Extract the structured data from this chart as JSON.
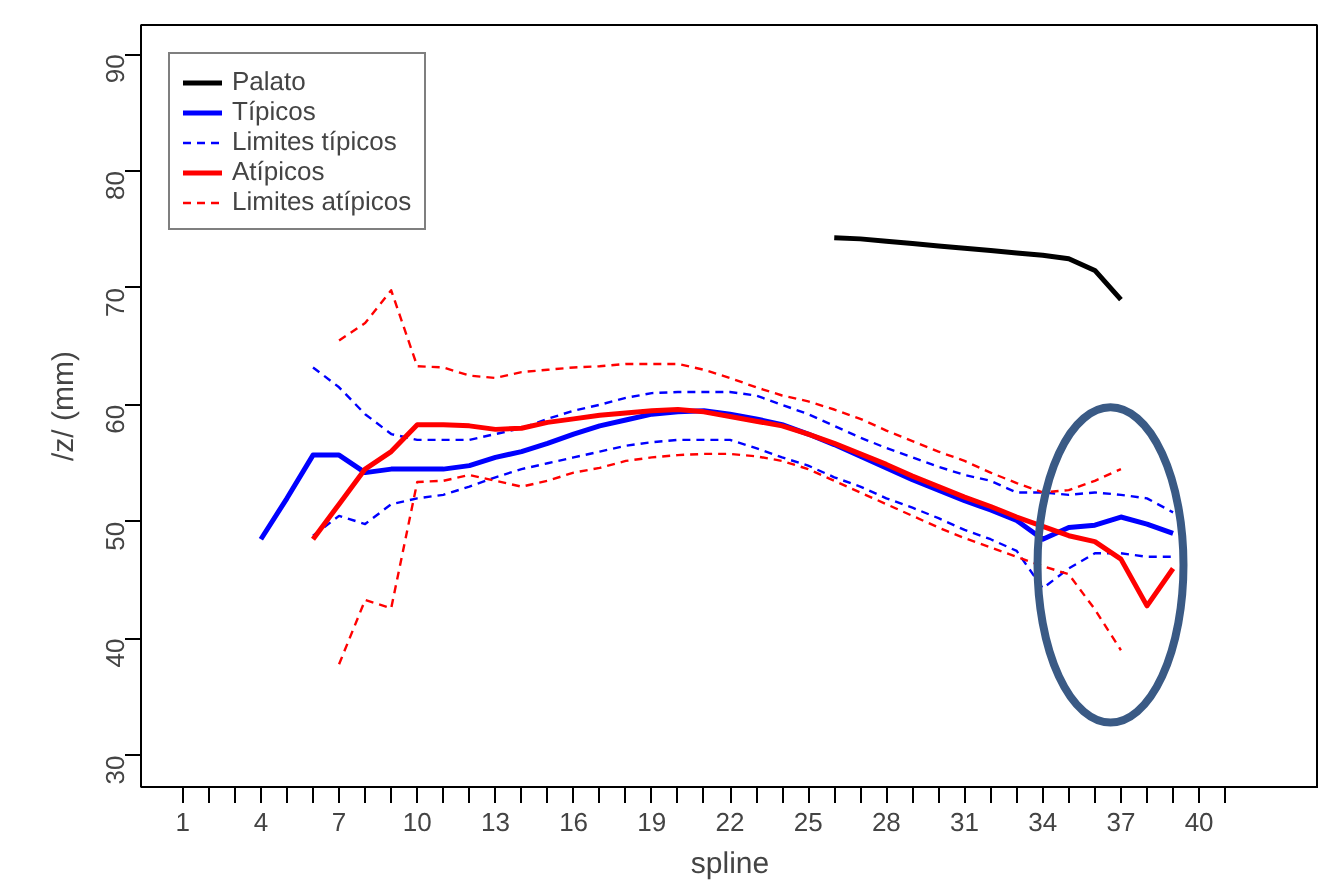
{
  "chart_data": {
    "type": "line",
    "xlabel": "spline",
    "ylabel": "/z/ (mm)",
    "xlim": [
      -0.6,
      44.6
    ],
    "ylim": [
      27.3,
      92.5
    ],
    "xticks": [
      1,
      {
        "value": 2,
        "label": null
      },
      {
        "value": 3,
        "label": null
      },
      4,
      {
        "value": 5,
        "label": null
      },
      {
        "value": 6,
        "label": null
      },
      7,
      {
        "value": 8,
        "label": null
      },
      {
        "value": 9,
        "label": null
      },
      10,
      {
        "value": 11,
        "label": null
      },
      {
        "value": 12,
        "label": null
      },
      13,
      {
        "value": 14,
        "label": null
      },
      {
        "value": 15,
        "label": null
      },
      16,
      {
        "value": 17,
        "label": null
      },
      {
        "value": 18,
        "label": null
      },
      19,
      {
        "value": 20,
        "label": null
      },
      {
        "value": 21,
        "label": null
      },
      22,
      {
        "value": 23,
        "label": null
      },
      {
        "value": 24,
        "label": null
      },
      25,
      {
        "value": 26,
        "label": null
      },
      {
        "value": 27,
        "label": null
      },
      28,
      {
        "value": 29,
        "label": null
      },
      {
        "value": 30,
        "label": null
      },
      31,
      {
        "value": 32,
        "label": null
      },
      {
        "value": 33,
        "label": null
      },
      34,
      {
        "value": 35,
        "label": null
      },
      {
        "value": 36,
        "label": null
      },
      37,
      {
        "value": 38,
        "label": null
      },
      {
        "value": 39,
        "label": null
      },
      40,
      {
        "value": 41,
        "label": null
      }
    ],
    "yticks": [
      30,
      40,
      50,
      60,
      70,
      80,
      90
    ],
    "grid": false,
    "legend": "top left",
    "series": [
      {
        "name": "Palato",
        "color": "#000000",
        "line_style": "solid",
        "x": [
          26,
          27,
          28,
          29,
          30,
          31,
          32,
          33,
          34,
          35,
          36,
          37
        ],
        "values": [
          74.3,
          74.2,
          74.0,
          73.8,
          73.6,
          73.4,
          73.2,
          73.0,
          72.8,
          72.5,
          71.5,
          69.0
        ]
      },
      {
        "name": "Típicos",
        "color": "#0000ff",
        "line_style": "solid",
        "x": [
          4,
          5,
          6,
          7,
          8,
          9,
          10,
          11,
          12,
          13,
          14,
          15,
          16,
          17,
          18,
          19,
          20,
          21,
          22,
          23,
          24,
          25,
          26,
          27,
          28,
          29,
          30,
          31,
          32,
          33,
          34,
          35,
          36,
          37,
          38,
          39
        ],
        "values": [
          48.5,
          52.0,
          55.7,
          55.7,
          54.2,
          54.5,
          54.5,
          54.5,
          54.8,
          55.5,
          56.0,
          56.7,
          57.5,
          58.2,
          58.7,
          59.2,
          59.4,
          59.5,
          59.2,
          58.8,
          58.3,
          57.5,
          56.6,
          55.6,
          54.6,
          53.6,
          52.7,
          51.8,
          51.0,
          50.1,
          48.5,
          49.5,
          49.7,
          50.4,
          49.8,
          49.0
        ]
      },
      {
        "name": "Limites típicos",
        "color": "#0000ff",
        "line_style": "dashed",
        "x": [
          6,
          7,
          8,
          9,
          10,
          11,
          12,
          13,
          14,
          15,
          16,
          17,
          18,
          19,
          20,
          21,
          22,
          23,
          24,
          25,
          26,
          27,
          28,
          29,
          30,
          31,
          32,
          33,
          34,
          35,
          36,
          37,
          38,
          39,
          null,
          6,
          7,
          8,
          9,
          10,
          11,
          12,
          13,
          14,
          15,
          16,
          17,
          18,
          19,
          20,
          21,
          22,
          23,
          24,
          25,
          26,
          27,
          28,
          29,
          30,
          31,
          32,
          33,
          34,
          35,
          36,
          37,
          38,
          39
        ],
        "values": [
          63.2,
          61.5,
          59.2,
          57.5,
          57.0,
          57.0,
          57.0,
          57.5,
          58.0,
          58.8,
          59.5,
          60.0,
          60.6,
          61.0,
          61.1,
          61.1,
          61.1,
          60.8,
          60.0,
          59.2,
          58.2,
          57.2,
          56.3,
          55.5,
          54.7,
          54.0,
          53.5,
          52.5,
          52.5,
          52.3,
          52.5,
          52.3,
          52.0,
          50.8,
          null,
          48.8,
          50.5,
          49.8,
          51.5,
          52.0,
          52.3,
          53.0,
          53.8,
          54.5,
          55.0,
          55.5,
          56.0,
          56.5,
          56.8,
          57.0,
          57.0,
          57.0,
          56.3,
          55.5,
          54.8,
          53.8,
          53.0,
          52.0,
          51.2,
          50.3,
          49.3,
          48.5,
          47.5,
          44.3,
          46.0,
          47.3,
          47.3,
          47.0,
          47.0
        ]
      },
      {
        "name": "Atípicos",
        "color": "#ff0000",
        "line_style": "solid",
        "x": [
          6,
          7,
          8,
          9,
          10,
          11,
          12,
          13,
          14,
          15,
          16,
          17,
          18,
          19,
          20,
          21,
          22,
          23,
          24,
          25,
          26,
          27,
          28,
          29,
          30,
          31,
          32,
          33,
          34,
          35,
          36,
          37,
          38,
          39
        ],
        "values": [
          48.5,
          51.5,
          54.5,
          56.0,
          58.3,
          58.3,
          58.2,
          57.9,
          58.0,
          58.5,
          58.8,
          59.1,
          59.3,
          59.5,
          59.6,
          59.4,
          59.0,
          58.6,
          58.2,
          57.5,
          56.7,
          55.8,
          54.9,
          53.9,
          53.0,
          52.1,
          51.3,
          50.4,
          49.6,
          48.8,
          48.3,
          46.8,
          42.8,
          46.0
        ]
      },
      {
        "name": "Limites atípicos",
        "color": "#ff0000",
        "line_style": "dashed",
        "x": [
          7,
          8,
          9,
          10,
          11,
          12,
          13,
          14,
          15,
          16,
          17,
          18,
          19,
          20,
          21,
          22,
          23,
          24,
          25,
          26,
          27,
          28,
          29,
          30,
          31,
          32,
          33,
          34,
          35,
          36,
          37,
          null,
          7,
          8,
          9,
          10,
          11,
          12,
          13,
          14,
          15,
          16,
          17,
          18,
          19,
          20,
          21,
          22,
          23,
          24,
          25,
          26,
          27,
          28,
          29,
          30,
          31,
          32,
          33,
          34,
          35,
          36,
          37
        ],
        "values": [
          65.5,
          67.0,
          69.8,
          63.3,
          63.2,
          62.5,
          62.3,
          62.8,
          63.0,
          63.2,
          63.3,
          63.5,
          63.5,
          63.5,
          63.0,
          62.3,
          61.5,
          60.8,
          60.3,
          59.6,
          58.8,
          57.8,
          56.9,
          56.0,
          55.2,
          54.2,
          53.3,
          52.5,
          52.7,
          53.5,
          54.5,
          null,
          37.8,
          43.3,
          42.6,
          53.4,
          53.5,
          54.0,
          53.5,
          53.0,
          53.5,
          54.2,
          54.6,
          55.2,
          55.5,
          55.7,
          55.8,
          55.8,
          55.6,
          55.2,
          54.5,
          53.5,
          52.5,
          51.5,
          50.5,
          49.5,
          48.6,
          47.8,
          47.0,
          46.2,
          45.5,
          42.5,
          39.0
        ]
      }
    ]
  }
}
